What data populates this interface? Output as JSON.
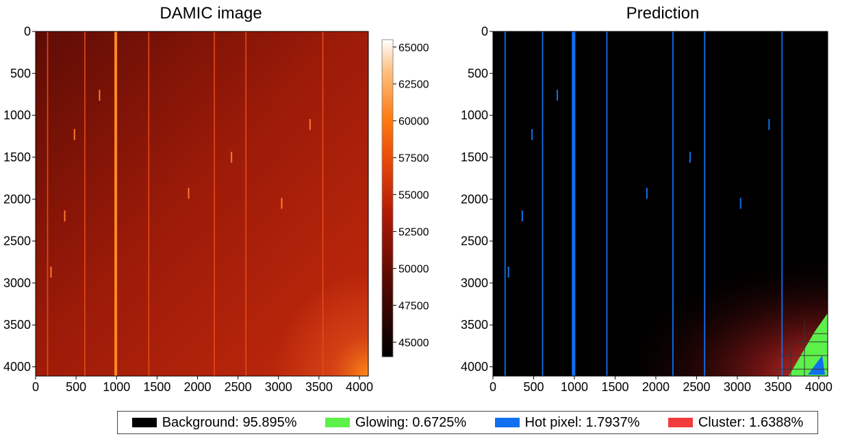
{
  "left_title": "DAMIC image",
  "right_title": "Prediction",
  "colorbar_ticks": [
    "65000",
    "62500",
    "60000",
    "57500",
    "55000",
    "52500",
    "50000",
    "47500",
    "45000"
  ],
  "x_ticks": [
    "0",
    "500",
    "1000",
    "1500",
    "2000",
    "2500",
    "3000",
    "3500",
    "4000"
  ],
  "y_ticks": [
    "0",
    "500",
    "1000",
    "1500",
    "2000",
    "2500",
    "3000",
    "3500",
    "4000"
  ],
  "legend": [
    {
      "label": "Background: 95.895%",
      "color": "#000000"
    },
    {
      "label": "Glowing: 0.6725%",
      "color": "#5cf04a"
    },
    {
      "label": "Hot pixel: 1.7937%",
      "color": "#1070f0"
    },
    {
      "label": "Cluster: 1.6388%",
      "color": "#f03c3c"
    }
  ],
  "chart_data": [
    {
      "type": "heatmap",
      "title": "DAMIC image",
      "xlim": [
        0,
        4110
      ],
      "ylim": [
        4110,
        0
      ],
      "x_ticks": [
        0,
        500,
        1000,
        1500,
        2000,
        2500,
        3000,
        3500,
        4000
      ],
      "y_ticks": [
        0,
        500,
        1000,
        1500,
        2000,
        2500,
        3000,
        3500,
        4000
      ],
      "colorbar": {
        "range": [
          44000,
          65500
        ],
        "ticks": [
          65000,
          62500,
          60000,
          57500,
          55000,
          52500,
          50000,
          47500,
          45000
        ],
        "colormap": "gist_heat"
      },
      "hot_columns": [
        150,
        610,
        990,
        1400,
        2210,
        2600,
        3550
      ],
      "hot_spots": [
        [
          480,
          1230
        ],
        [
          790,
          760
        ],
        [
          1890,
          1930
        ],
        [
          2420,
          1500
        ],
        [
          3040,
          2050
        ],
        [
          3390,
          1110
        ],
        [
          190,
          2870
        ],
        [
          360,
          2200
        ]
      ]
    },
    {
      "type": "heatmap",
      "title": "Prediction",
      "xlim": [
        0,
        4110
      ],
      "ylim": [
        4110,
        0
      ],
      "x_ticks": [
        0,
        500,
        1000,
        1500,
        2000,
        2500,
        3000,
        3500,
        4000
      ],
      "y_ticks": [
        0,
        500,
        1000,
        1500,
        2000,
        2500,
        3000,
        3500,
        4000
      ],
      "classes": [
        "Background",
        "Glowing",
        "Hot pixel",
        "Cluster"
      ],
      "class_fractions_percent": [
        95.895,
        0.6725,
        1.7937,
        1.6388
      ]
    }
  ]
}
